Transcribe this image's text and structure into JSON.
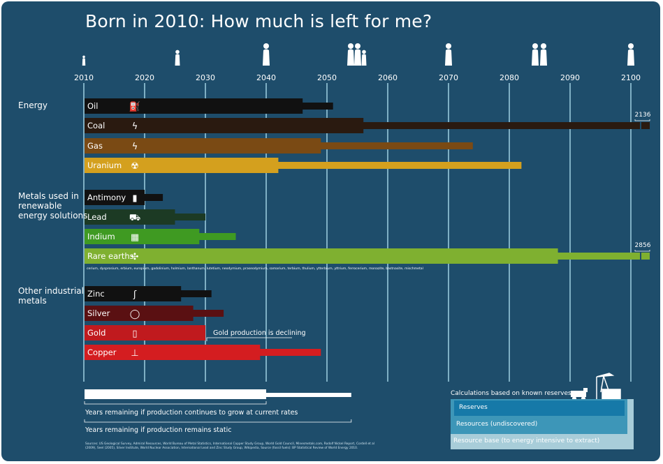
{
  "title": "Born in 2010: How much is left for me?",
  "categories": {
    "energy": "Energy",
    "metals_renewable": "Metals used in\nrenewable\nenergy solutions",
    "other_metals": "Other industrial\nmetals"
  },
  "annotations": {
    "gold_note": "Gold production is declining",
    "coal_end": "2136",
    "rare_earths_end": "2856",
    "rare_earths_list": "cerium, dysprosium, erbium, europium, gadolinium, holmium, lanthanum, lutetium, neodymium, praseodymium, samarium, terbium, thulium, ytterbium, yttrium, ferrocerium, monazite, bastnasite, mischmetal"
  },
  "legend": {
    "growth": "Years remaining if production continues to grow at current rates",
    "static": "Years remaining if production remains static",
    "calc_title": "Calculations based on known reserves:",
    "reserves": "Reserves",
    "resources": "Resources (undiscovered)",
    "resource_base": "Resource base (to energy intensive to extract)"
  },
  "sources": "Sources: US Geological Survey, Admiral Resources, World Bureau of Metal Statistics, International Copper Study Group, World Gold Council, Minesmetals.com, Rodolf Nickel Report, Cordell et al (2009), Seel (2005), Silver Institute, World Nuclear Association, International Lead and Zinc Study Group, Wikipedia, Source (fossil fuels): BP Statistical Review of World Energy 2010.",
  "icons": [
    "baby-icon",
    "child-icon",
    "bride-icon",
    "family-icon",
    "elderly-man-icon",
    "elderly-couple-icon",
    "wheelchair-icon"
  ],
  "chart_data": {
    "type": "bar",
    "orientation": "horizontal",
    "start_year": 2010,
    "xlim": [
      2010,
      2100
    ],
    "xticks": [
      "2010",
      "2020",
      "2030",
      "2040",
      "2050",
      "2060",
      "2070",
      "2080",
      "2090",
      "2100"
    ],
    "series": [
      {
        "name": "Years remaining if production continues to grow at current rates"
      },
      {
        "name": "Years remaining if production remains static"
      }
    ],
    "rows": [
      {
        "label": "Oil",
        "group": "energy",
        "icon": "fuel-pump-icon",
        "color": "#111111",
        "growth": 2046,
        "static": 2051
      },
      {
        "label": "Coal",
        "group": "energy",
        "icon": "lightning-icon",
        "color": "#2a1a10",
        "growth": 2056,
        "static": 2136
      },
      {
        "label": "Gas",
        "group": "energy",
        "icon": "lightning-icon",
        "color": "#7a4a14",
        "growth": 2049,
        "static": 2074
      },
      {
        "label": "Uranium",
        "group": "energy",
        "icon": "radiation-icon",
        "color": "#d4a01e",
        "growth": 2042,
        "static": 2082
      },
      {
        "label": "Antimony",
        "group": "renewable",
        "icon": "battery-icon",
        "color": "#111111",
        "growth": 2020,
        "static": 2023
      },
      {
        "label": "Lead",
        "group": "renewable",
        "icon": "car-icon",
        "color": "#1c3a24",
        "growth": 2025,
        "static": 2030
      },
      {
        "label": "Indium",
        "group": "renewable",
        "icon": "solar-panel-icon",
        "color": "#3f9a22",
        "growth": 2029,
        "static": 2035
      },
      {
        "label": "Rare earths",
        "group": "renewable",
        "icon": "wind-turbine-icon",
        "color": "#7fb030",
        "growth": 2088,
        "static": 2856
      },
      {
        "label": "Zinc",
        "group": "industrial",
        "icon": "saxophone-icon",
        "color": "#111111",
        "growth": 2026,
        "static": 2031
      },
      {
        "label": "Silver",
        "group": "industrial",
        "icon": "ring-icon",
        "color": "#5a1012",
        "growth": 2028,
        "static": 2033
      },
      {
        "label": "Gold",
        "group": "industrial",
        "icon": "phone-icon",
        "color": "#c01a1e",
        "growth": 2030,
        "static": 2030
      },
      {
        "label": "Copper",
        "group": "industrial",
        "icon": "tap-icon",
        "color": "#d41d20",
        "growth": 2039,
        "static": 2049
      }
    ],
    "legend_bar": {
      "growth_end": 2040,
      "static_end": 2054
    }
  }
}
